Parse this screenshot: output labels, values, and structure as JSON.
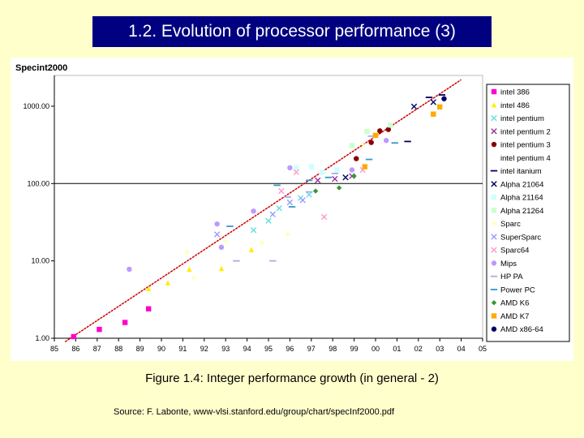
{
  "slide": {
    "title": "1.2. Evolution of processor performance (3)",
    "caption": "Figure 1.4: Integer performance growth (in general - 2)",
    "source": "Source: F. Labonte, www-vlsi.stanford.edu/group/chart/specInf2000.pdf"
  },
  "chart_data": {
    "type": "scatter",
    "title": "",
    "ylabel": "Specint2000",
    "xlabel": "",
    "y_scale": "log",
    "ylim": [
      1,
      2500
    ],
    "xlim": [
      85,
      105
    ],
    "y_ticks": [
      "1.00",
      "10.00",
      "100.00",
      "1000.00"
    ],
    "x_ticks": [
      "85",
      "86",
      "87",
      "88",
      "89",
      "90",
      "91",
      "92",
      "93",
      "94",
      "95",
      "96",
      "97",
      "98",
      "99",
      "00",
      "01",
      "02",
      "03",
      "04",
      "05"
    ],
    "trend_line": {
      "name": "trend",
      "color": "#cc0000",
      "from": [
        85.5,
        0.9
      ],
      "to": [
        104,
        2200
      ]
    },
    "legend_position": "right",
    "series": [
      {
        "name": "intel 386",
        "color": "#ff00cc",
        "marker": "square",
        "points": [
          [
            85.9,
            1.05
          ],
          [
            87.1,
            1.3
          ],
          [
            88.3,
            1.6
          ],
          [
            89.4,
            2.4
          ]
        ]
      },
      {
        "name": "intel 486",
        "color": "#ffee00",
        "marker": "triangle",
        "points": [
          [
            89.4,
            4.4
          ],
          [
            90.3,
            5.2
          ],
          [
            91.3,
            7.8
          ],
          [
            92.8,
            8.0
          ],
          [
            94.2,
            14
          ]
        ]
      },
      {
        "name": "intel pentium",
        "color": "#66dddd",
        "marker": "x",
        "points": [
          [
            94.3,
            25
          ],
          [
            95.0,
            33
          ],
          [
            95.5,
            48
          ],
          [
            96.5,
            65
          ],
          [
            96.9,
            72
          ]
        ]
      },
      {
        "name": "intel pentium 2",
        "color": "#993399",
        "marker": "x",
        "points": [
          [
            97.3,
            110
          ],
          [
            98.1,
            115
          ],
          [
            98.9,
            125
          ]
        ]
      },
      {
        "name": "intel pentium 3",
        "color": "#880000",
        "marker": "circle",
        "points": [
          [
            99.1,
            210
          ],
          [
            99.8,
            340
          ],
          [
            100.2,
            480
          ],
          [
            100.6,
            500
          ]
        ]
      },
      {
        "name": "intel pentium 4",
        "color": "#ffffff",
        "marker": "none",
        "points": []
      },
      {
        "name": "intel itanium",
        "color": "#000066",
        "marker": "dash",
        "points": [
          [
            101.5,
            350
          ],
          [
            102.5,
            1300
          ],
          [
            103.1,
            1400
          ]
        ]
      },
      {
        "name": "Alpha 21064",
        "color": "#000066",
        "marker": "x",
        "points": [
          [
            98.6,
            120
          ],
          [
            101.8,
            990
          ],
          [
            102.7,
            1130
          ]
        ]
      },
      {
        "name": "Alpha 21164",
        "color": "#ccffff",
        "marker": "square",
        "points": [
          [
            96.3,
            160
          ],
          [
            97.0,
            165
          ],
          [
            97.5,
            140
          ],
          [
            98.2,
            150
          ]
        ]
      },
      {
        "name": "Alpha 21264",
        "color": "#ccffcc",
        "marker": "square",
        "points": [
          [
            98.9,
            310
          ],
          [
            99.6,
            470
          ],
          [
            100.7,
            570
          ]
        ]
      },
      {
        "name": "Sparc",
        "color": "#ffffaa",
        "marker": "plus",
        "points": [
          [
            91.2,
            13
          ],
          [
            91.5,
            6
          ],
          [
            93.0,
            18
          ],
          [
            94.7,
            17
          ],
          [
            95.9,
            22
          ],
          [
            99.4,
            320
          ]
        ]
      },
      {
        "name": "SuperSparc",
        "color": "#9999ff",
        "marker": "x",
        "points": [
          [
            92.6,
            22
          ],
          [
            95.2,
            40
          ],
          [
            96.0,
            57
          ],
          [
            96.6,
            61
          ]
        ]
      },
      {
        "name": "Sparc64",
        "color": "#ff99cc",
        "marker": "x",
        "points": [
          [
            95.6,
            80
          ],
          [
            96.3,
            140
          ],
          [
            97.6,
            37
          ],
          [
            99.4,
            150
          ]
        ]
      },
      {
        "name": "Mips",
        "color": "#bb99ff",
        "marker": "circle",
        "points": [
          [
            88.5,
            7.8
          ],
          [
            92.6,
            30
          ],
          [
            92.8,
            15
          ],
          [
            94.3,
            44
          ],
          [
            96.0,
            160
          ],
          [
            98.9,
            150
          ],
          [
            100.5,
            360
          ]
        ]
      },
      {
        "name": "HP PA",
        "color": "#aaaaee",
        "marker": "dash",
        "points": [
          [
            93.5,
            10
          ],
          [
            95.2,
            10
          ],
          [
            95.9,
            67
          ],
          [
            96.9,
            78
          ],
          [
            98.1,
            135
          ],
          [
            99.8,
            410
          ]
        ]
      },
      {
        "name": "Power PC",
        "color": "#3399cc",
        "marker": "dash",
        "points": [
          [
            93.2,
            28
          ],
          [
            95.4,
            95
          ],
          [
            96.1,
            50
          ],
          [
            96.9,
            110
          ],
          [
            97.8,
            120
          ],
          [
            99.7,
            205
          ],
          [
            100.9,
            335
          ]
        ]
      },
      {
        "name": "AMD K6",
        "color": "#339933",
        "marker": "diamond",
        "points": [
          [
            97.2,
            80
          ],
          [
            98.3,
            88
          ],
          [
            99.0,
            125
          ]
        ]
      },
      {
        "name": "AMD K7",
        "color": "#ffaa00",
        "marker": "square",
        "points": [
          [
            99.5,
            165
          ],
          [
            100.0,
            420
          ],
          [
            102.7,
            790
          ],
          [
            103.0,
            980
          ]
        ]
      },
      {
        "name": "AMD x86-64",
        "color": "#000066",
        "marker": "circle",
        "points": [
          [
            103.2,
            1250
          ]
        ]
      }
    ]
  }
}
